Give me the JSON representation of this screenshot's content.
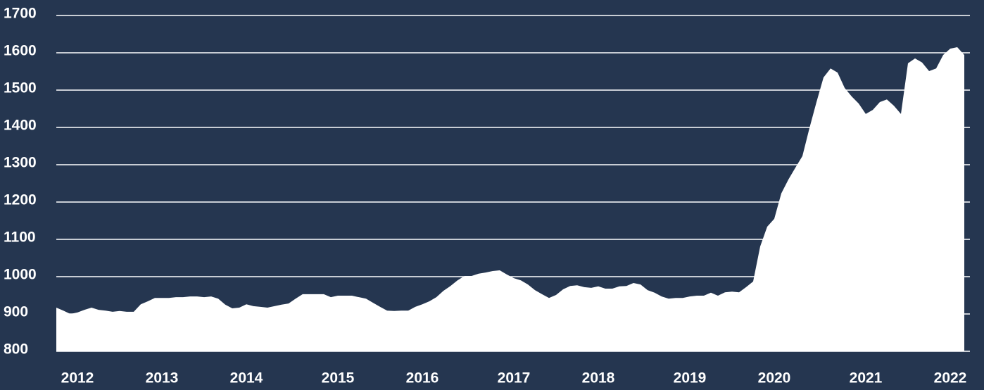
{
  "chart_data": {
    "type": "area",
    "color": "#ffffff",
    "grid": true,
    "ylim": [
      800,
      1700
    ],
    "yticks": [
      800,
      900,
      1000,
      1100,
      1200,
      1300,
      1400,
      1500,
      1600,
      1700
    ],
    "categories": [
      null,
      null,
      null,
      "2012",
      null,
      null,
      null,
      null,
      null,
      null,
      null,
      null,
      null,
      null,
      null,
      "2013",
      null,
      null,
      null,
      null,
      null,
      null,
      null,
      null,
      null,
      null,
      null,
      "2014",
      null,
      null,
      null,
      null,
      null,
      null,
      null,
      null,
      null,
      null,
      null,
      null,
      "2015",
      null,
      null,
      null,
      null,
      null,
      null,
      null,
      null,
      null,
      null,
      null,
      "2016",
      null,
      null,
      null,
      null,
      null,
      null,
      null,
      null,
      null,
      null,
      null,
      null,
      "2017",
      null,
      null,
      null,
      null,
      null,
      null,
      null,
      null,
      null,
      null,
      null,
      "2018",
      null,
      null,
      null,
      null,
      null,
      null,
      null,
      null,
      null,
      null,
      null,
      null,
      "2019",
      null,
      null,
      null,
      null,
      null,
      null,
      null,
      null,
      null,
      null,
      null,
      "2020",
      null,
      null,
      null,
      null,
      null,
      null,
      null,
      null,
      null,
      null,
      null,
      null,
      "2021",
      null,
      null,
      null,
      null,
      null,
      null,
      null,
      null,
      null,
      null,
      null,
      "2022",
      null,
      null
    ],
    "values": [
      917,
      909,
      900,
      904,
      911,
      917,
      911,
      909,
      906,
      908,
      906,
      906,
      926,
      934,
      943,
      943,
      943,
      945,
      945,
      947,
      947,
      945,
      947,
      941,
      925,
      915,
      917,
      926,
      921,
      919,
      917,
      921,
      925,
      928,
      941,
      953,
      953,
      953,
      953,
      945,
      949,
      949,
      949,
      945,
      941,
      930,
      919,
      909,
      908,
      909,
      909,
      919,
      926,
      934,
      945,
      962,
      975,
      990,
      1002,
      1002,
      1008,
      1011,
      1015,
      1017,
      1006,
      996,
      990,
      979,
      964,
      953,
      943,
      951,
      966,
      975,
      977,
      972,
      970,
      974,
      968,
      968,
      974,
      975,
      983,
      979,
      964,
      957,
      947,
      941,
      943,
      943,
      947,
      949,
      949,
      957,
      949,
      958,
      960,
      958,
      972,
      987,
      1081,
      1134,
      1155,
      1223,
      1260,
      1292,
      1323,
      1398,
      1468,
      1534,
      1558,
      1547,
      1506,
      1483,
      1464,
      1436,
      1447,
      1468,
      1475,
      1458,
      1436,
      1572,
      1585,
      1574,
      1551,
      1558,
      1594,
      1611,
      1615,
      1594
    ]
  }
}
